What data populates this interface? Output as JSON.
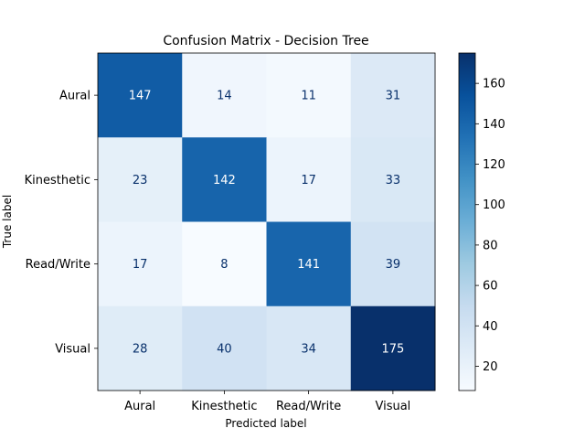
{
  "chart_data": {
    "type": "heatmap",
    "title": "Confusion Matrix - Decision Tree",
    "xlabel": "Predicted label",
    "ylabel": "True label",
    "x_categories": [
      "Aural",
      "Kinesthetic",
      "Read/Write",
      "Visual"
    ],
    "y_categories": [
      "Aural",
      "Kinesthetic",
      "Read/Write",
      "Visual"
    ],
    "values": [
      [
        147,
        14,
        11,
        31
      ],
      [
        23,
        142,
        17,
        33
      ],
      [
        17,
        8,
        141,
        39
      ],
      [
        28,
        40,
        34,
        175
      ]
    ],
    "colormap": "Blues",
    "colorbar": {
      "range": [
        8,
        175
      ],
      "ticks": [
        20,
        40,
        60,
        80,
        100,
        120,
        140,
        160
      ]
    },
    "grid": false
  }
}
